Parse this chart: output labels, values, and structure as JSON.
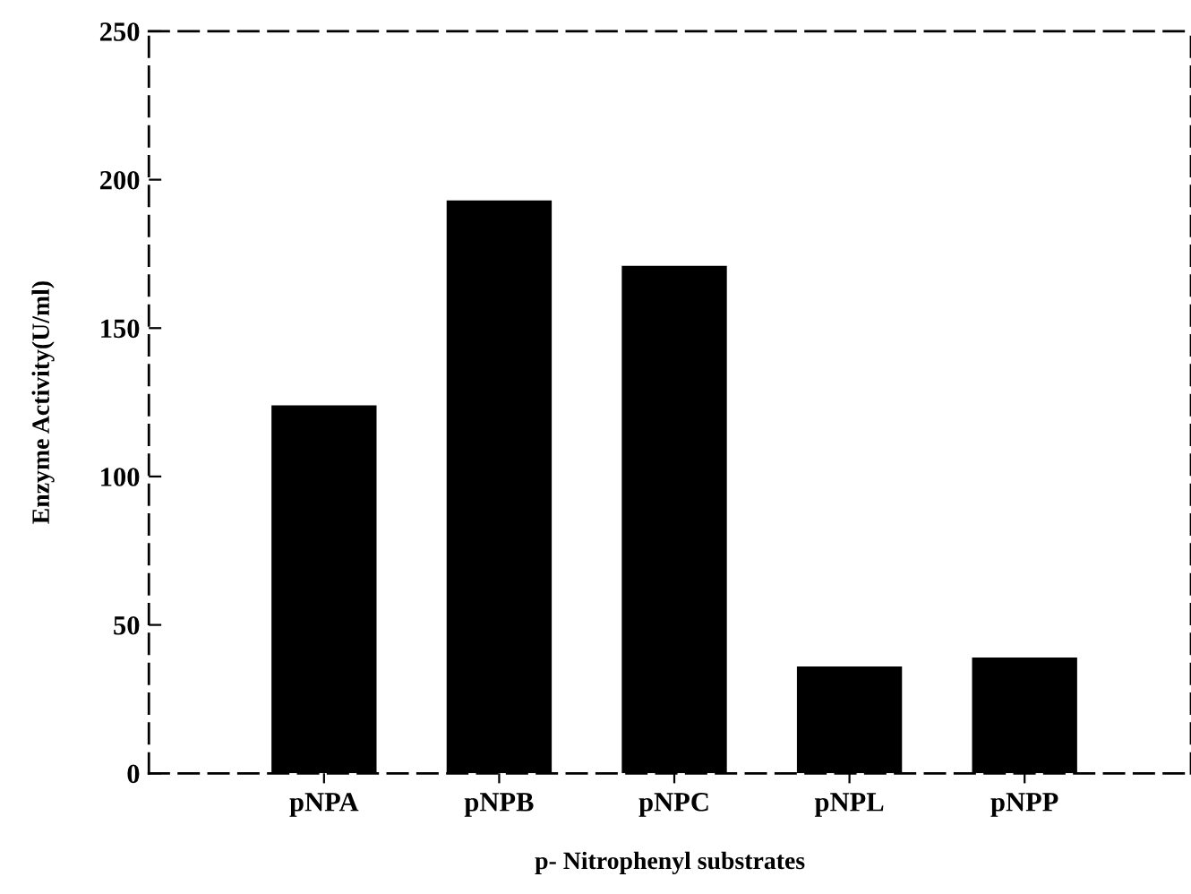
{
  "chart_data": {
    "type": "bar",
    "xlabel": "p- Nitrophenyl substrates",
    "ylabel": "Enzyme Activity(U/ml)",
    "categories": [
      "pNPA",
      "pNPB",
      "pNPC",
      "pNPL",
      "pNPP"
    ],
    "values": [
      124,
      193,
      171,
      36,
      39
    ],
    "color": "#000000",
    "ylim": [
      0,
      250
    ],
    "yticks": [
      0,
      50,
      100,
      150,
      200,
      250
    ],
    "grid": false,
    "legend": false
  }
}
